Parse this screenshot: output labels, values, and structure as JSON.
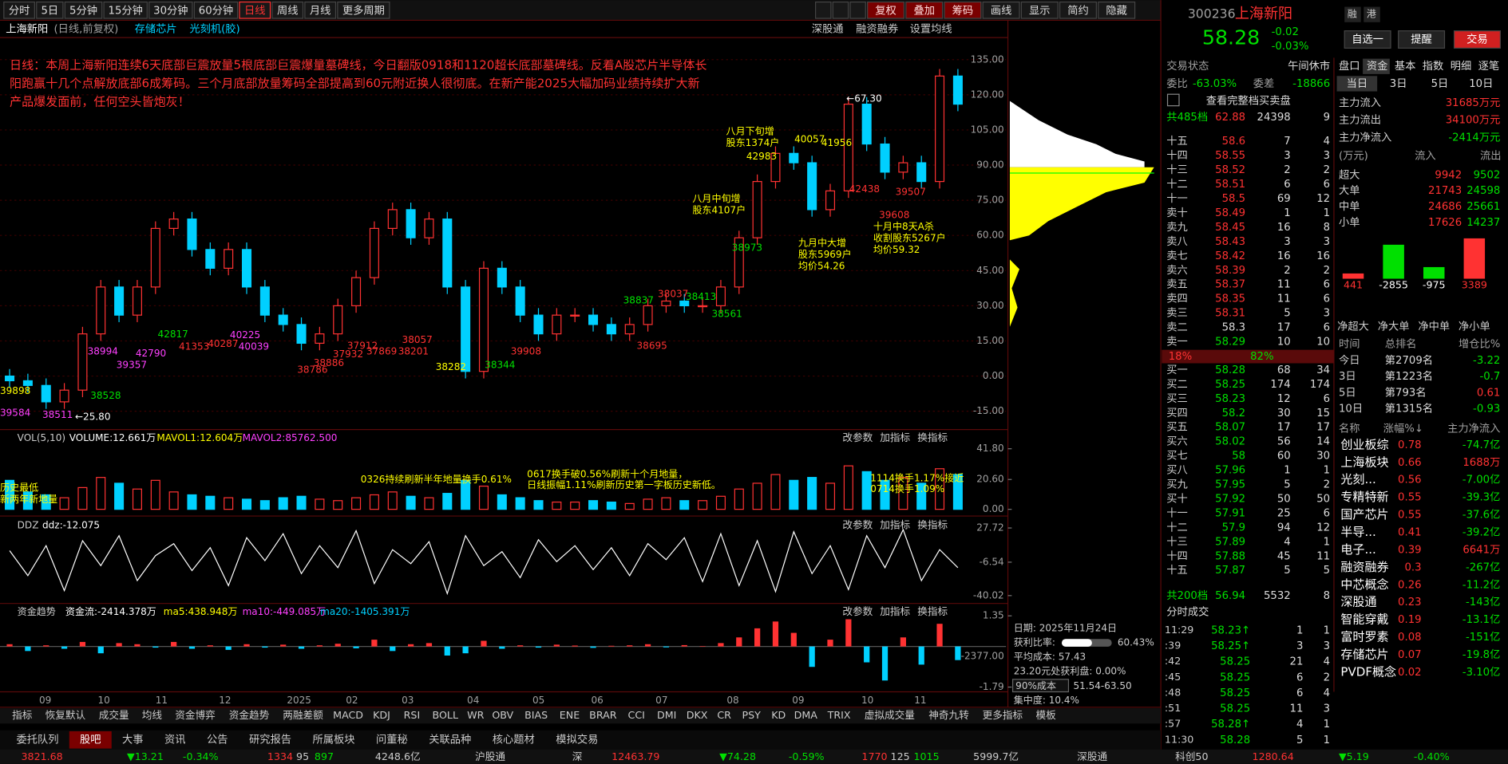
{
  "toolbar": {
    "periods": [
      "分时",
      "5日",
      "5分钟",
      "15分钟",
      "30分钟",
      "60分钟",
      "日线",
      "周线",
      "月线",
      "更多周期"
    ],
    "active_period": 6,
    "tools": [
      "复权",
      "叠加",
      "筹码",
      "画线",
      "显示",
      "简约",
      "隐藏"
    ]
  },
  "stock": {
    "code": "300236",
    "name": "上海新阳",
    "price": 58.28,
    "change": -0.02,
    "change_pct": "-0.03%",
    "tags": [
      "融",
      "港"
    ],
    "buttons": [
      "自选一",
      "提醒",
      "交易"
    ]
  },
  "chart": {
    "title": "上海新阳",
    "mode": "(日线,前复权)",
    "tags": [
      "存储芯片",
      "光刻机(胶)"
    ],
    "links": [
      "深股通",
      "融资融券",
      "设置均线"
    ],
    "annotation": [
      "日线：本周上海新阳连续6天底部巨震放量5根底部巨震爆量墓碑线，今日翻版0918和1120超长底部墓碑线。反着A股芯片半导体长",
      "阳跑赢十几个点解放底部6成筹码。三个月底部放量筹码全部提高到60元附近换人很彻底。在新产能2025大幅加码业绩持续扩大新",
      "产品爆发面前，任何空头皆炮灰！"
    ],
    "notes": [
      "←67.30",
      "←25.80",
      "八月下旬增",
      "股东1374户",
      "八月中旬增",
      "股东4107户",
      "九月中大增",
      "股东5969户",
      "均价54.26",
      "十月中8天A杀",
      "收割股东5267户",
      "均价59.32"
    ],
    "chip_counts": [
      "38837",
      "38037",
      "38413",
      "38561",
      "38695",
      "38282",
      "38344",
      "42817",
      "42790",
      "39357",
      "38994",
      "38528",
      "39584",
      "39898",
      "38511",
      "41353",
      "40287",
      "40225",
      "40039",
      "38786",
      "38886",
      "37932",
      "37912",
      "37869",
      "38201",
      "38057",
      "39908",
      "42983",
      "40057",
      "41956",
      "42438",
      "39507",
      "39608",
      "38973"
    ],
    "ylim": [
      -22,
      144
    ],
    "yticks": [
      {
        "value": 135,
        "label": "135.00"
      },
      {
        "value": 120,
        "label": "120.00"
      },
      {
        "value": 105,
        "label": "105.00"
      },
      {
        "value": 90,
        "label": "90.00"
      },
      {
        "value": 75,
        "label": "75.00"
      },
      {
        "value": 60,
        "label": "60.00"
      },
      {
        "value": 45,
        "label": "45.00"
      },
      {
        "value": 30,
        "label": "30.00"
      },
      {
        "value": 15,
        "label": "15.00"
      },
      {
        "value": 0,
        "label": "0.00"
      },
      {
        "value": -15,
        "label": "-15.00"
      }
    ],
    "candles": [
      [
        0,
        3,
        -5,
        -2
      ],
      [
        -2,
        1,
        -7,
        -4
      ],
      [
        -4,
        -1,
        -14,
        -11
      ],
      [
        -11,
        -3,
        -14,
        -6
      ],
      [
        -6,
        21,
        -9,
        18
      ],
      [
        18,
        41,
        15,
        38
      ],
      [
        38,
        41,
        23,
        26
      ],
      [
        26,
        41,
        23,
        38
      ],
      [
        38,
        66,
        35,
        63
      ],
      [
        63,
        70,
        60,
        67
      ],
      [
        67,
        70,
        51,
        54
      ],
      [
        54,
        57,
        43,
        46
      ],
      [
        46,
        57,
        43,
        54
      ],
      [
        54,
        57,
        35,
        38
      ],
      [
        38,
        41,
        23,
        26
      ],
      [
        26,
        29,
        19,
        22
      ],
      [
        22,
        25,
        11,
        14
      ],
      [
        14,
        21,
        11,
        18
      ],
      [
        18,
        33,
        15,
        30
      ],
      [
        30,
        45,
        27,
        42
      ],
      [
        42,
        66,
        39,
        63
      ],
      [
        63,
        74,
        60,
        71
      ],
      [
        71,
        74,
        56,
        59
      ],
      [
        59,
        70,
        56,
        67
      ],
      [
        67,
        70,
        35,
        38
      ],
      [
        38,
        41,
        -1,
        2
      ],
      [
        2,
        49,
        -1,
        46
      ],
      [
        46,
        49,
        35,
        38
      ],
      [
        38,
        41,
        23,
        26
      ],
      [
        26,
        29,
        15,
        18
      ],
      [
        18,
        29,
        15,
        26
      ],
      [
        26,
        29,
        23,
        26
      ],
      [
        26,
        29,
        19,
        22
      ],
      [
        22,
        25,
        15,
        18
      ],
      [
        18,
        25,
        15,
        22
      ],
      [
        22,
        33,
        19,
        30
      ],
      [
        30,
        35,
        27,
        32
      ],
      [
        32,
        35,
        27,
        30
      ],
      [
        30,
        33,
        27,
        30
      ],
      [
        30,
        41,
        27,
        38
      ],
      [
        38,
        62,
        35,
        59
      ],
      [
        59,
        86,
        56,
        83
      ],
      [
        83,
        98,
        80,
        95
      ],
      [
        95,
        98,
        88,
        91
      ],
      [
        91,
        94,
        68,
        71
      ],
      [
        71,
        82,
        68,
        79
      ],
      [
        79,
        119,
        76,
        116
      ],
      [
        116,
        119,
        96,
        99
      ],
      [
        99,
        102,
        84,
        87
      ],
      [
        87,
        94,
        84,
        91
      ],
      [
        91,
        94,
        80,
        83
      ],
      [
        83,
        131,
        80,
        128
      ],
      [
        128,
        131,
        113,
        116
      ]
    ],
    "x_labels": [
      "09",
      "10",
      "11",
      "12",
      "2025",
      "02",
      "03",
      "04",
      "05",
      "06",
      "07",
      "08",
      "09",
      "10",
      "11"
    ]
  },
  "panel_buttons": [
    "改参数",
    "加指标",
    "换指标"
  ],
  "volume": {
    "title": "VOL(5,10)",
    "readouts": [
      "VOLUME:12.661万",
      "MAVOL1:12.604万",
      "MAVOL2:85762.500"
    ],
    "ylim": [
      -3.3,
      45.1
    ],
    "yticks": [
      {
        "value": 41.8,
        "label": "41.80"
      },
      {
        "value": 20.6,
        "label": "20.60"
      },
      {
        "value": 0,
        "label": "0.00"
      }
    ],
    "values": [
      20,
      12,
      10,
      8,
      15,
      22,
      18,
      14,
      20,
      12,
      10,
      9,
      8,
      7,
      6,
      8,
      9,
      7,
      6,
      8,
      10,
      12,
      9,
      8,
      11,
      20,
      16,
      10,
      8,
      6,
      5,
      5,
      6,
      5,
      4,
      7,
      8,
      6,
      6,
      9,
      14,
      18,
      24,
      20,
      22,
      18,
      30,
      26,
      20,
      22,
      18,
      28,
      24
    ],
    "notes": [
      "历史最低",
      "新两年新地量",
      "0326持续刷新半年地量换手0.61%",
      "0617换手破0.56%刷新十个月地量，",
      "日线振幅1.11%刷新历史第一字板历史新低。",
      "1114换手1.17%接近",
      "0714换手1.09%"
    ]
  },
  "ddz": {
    "title": "DDZ",
    "readout": "ddz:-12.075",
    "ylim": [
      -45,
      32
    ],
    "yticks": [
      27.72,
      -6.54,
      -40.02
    ],
    "values": [
      5,
      -20,
      10,
      -35,
      15,
      -10,
      20,
      -25,
      0,
      12,
      -15,
      8,
      -30,
      18,
      -5,
      22,
      -18,
      10,
      -12,
      25,
      -28,
      6,
      -8,
      14,
      -38,
      20,
      -10,
      4,
      -22,
      16,
      -6,
      10,
      -14,
      8,
      -20,
      12,
      -4,
      18,
      -26,
      22,
      -30,
      15,
      -36,
      24,
      -18,
      10,
      -34,
      20,
      -12,
      26,
      -25,
      6,
      -12
    ]
  },
  "flow": {
    "title": "资金趋势",
    "readouts": [
      "资金流:-2414.378万",
      "ma5:438.948万",
      "ma10:-449.085万",
      "ma20:-1405.391万"
    ],
    "ylim": [
      -2.0,
      1.6
    ],
    "yticks": [
      1.35,
      -1.79
    ],
    "current": "-2377.00",
    "values": [
      0.1,
      -0.2,
      0.05,
      -0.1,
      0.2,
      -0.3,
      0.15,
      0.1,
      -0.05,
      0.2,
      -0.1,
      0.05,
      -0.15,
      0.1,
      -0.05,
      0.08,
      -0.1,
      0.05,
      0.12,
      -0.08,
      0.3,
      -0.2,
      0.1,
      0.15,
      -0.4,
      -0.3,
      0.25,
      -0.1,
      0.05,
      -0.05,
      0.08,
      0.04,
      -0.06,
      0.03,
      0.05,
      0.1,
      -0.04,
      0.06,
      0.02,
      0.15,
      0.4,
      0.8,
      1.1,
      0.6,
      -0.9,
      0.3,
      1.2,
      -0.7,
      -1.5,
      0.4,
      -0.8,
      1.0,
      -0.6
    ]
  },
  "chips": {
    "date": "日期: 2025年11月24日",
    "profit_label": "获利比率:",
    "profit": {
      "value": 60.43,
      "label": "60.43%"
    },
    "avg": "平均成本: 57.43",
    "profit_at": "23.20元处获利盘: 0.00%",
    "cost_select": "90%成本",
    "cost_range": "51.54-63.50",
    "concentration": "集中度: 10.4%"
  },
  "orderbook": {
    "status_label": "交易状态",
    "status": "午间休市",
    "ratio_label": "委比",
    "ratio": "-63.03%",
    "diff_label": "委差",
    "diff": -18866,
    "full": "查看完整档买卖盘",
    "sell_total": [
      "共485档",
      62.88,
      24398,
      9
    ],
    "sells": [
      [
        "十五",
        58.6,
        7,
        4
      ],
      [
        "十四",
        58.55,
        3,
        3
      ],
      [
        "十三",
        58.52,
        2,
        2
      ],
      [
        "十二",
        58.51,
        6,
        6
      ],
      [
        "十一",
        58.5,
        69,
        12
      ],
      [
        "卖十",
        58.49,
        1,
        1
      ],
      [
        "卖九",
        58.45,
        16,
        8
      ],
      [
        "卖八",
        58.43,
        3,
        3
      ],
      [
        "卖七",
        58.42,
        16,
        16
      ],
      [
        "卖六",
        58.39,
        2,
        2
      ],
      [
        "卖五",
        58.37,
        11,
        6
      ],
      [
        "卖四",
        58.35,
        11,
        6
      ],
      [
        "卖三",
        58.31,
        5,
        3
      ],
      [
        "卖二",
        58.3,
        17,
        6
      ],
      [
        "卖一",
        58.29,
        10,
        10
      ]
    ],
    "ratio_bar": [
      "18%",
      "82%"
    ],
    "buys": [
      [
        "买一",
        58.28,
        68,
        34
      ],
      [
        "买二",
        58.25,
        174,
        174
      ],
      [
        "买三",
        58.23,
        12,
        6
      ],
      [
        "买四",
        58.2,
        30,
        15
      ],
      [
        "买五",
        58.07,
        17,
        17
      ],
      [
        "买六",
        58.02,
        56,
        14
      ],
      [
        "买七",
        58,
        60,
        30
      ],
      [
        "买八",
        57.96,
        1,
        1
      ],
      [
        "买九",
        57.95,
        5,
        2
      ],
      [
        "买十",
        57.92,
        50,
        50
      ],
      [
        "十一",
        57.91,
        25,
        6
      ],
      [
        "十二",
        57.9,
        94,
        12
      ],
      [
        "十三",
        57.89,
        4,
        1
      ],
      [
        "十四",
        57.88,
        45,
        11
      ],
      [
        "十五",
        57.87,
        5,
        5
      ]
    ],
    "buy_total": [
      "共200档",
      56.94,
      5532,
      8
    ]
  },
  "ticks": {
    "title": "分时成交",
    "rows": [
      [
        "11:29",
        "58.23↑",
        1,
        1
      ],
      [
        ":39",
        "58.25↑",
        3,
        3
      ],
      [
        ":42",
        "58.25",
        21,
        4
      ],
      [
        ":45",
        "58.25",
        6,
        2
      ],
      [
        ":48",
        "58.25",
        6,
        4
      ],
      [
        ":51",
        "58.25",
        11,
        3
      ],
      [
        ":57",
        "58.28↑",
        4,
        1
      ],
      [
        "11:30",
        "58.28",
        5,
        1
      ]
    ]
  },
  "fund": {
    "tabs": [
      "盘口",
      "资金",
      "基本",
      "指数",
      "明细",
      "逐笔"
    ],
    "periods": [
      "当日",
      "3日",
      "5日",
      "10日"
    ],
    "summary": [
      [
        "主力流入",
        "31685万元"
      ],
      [
        "主力流出",
        "34100万元"
      ],
      [
        "主力净流入",
        "-2414万元"
      ]
    ],
    "table_head": [
      "(万元)",
      "流入",
      "流出"
    ],
    "table": [
      [
        "超大",
        9942,
        9502
      ],
      [
        "大单",
        21743,
        24598
      ],
      [
        "中单",
        24686,
        25661
      ],
      [
        "小单",
        17626,
        14237
      ]
    ],
    "net": {
      "labels": [
        "净超大",
        "净大单",
        "净中单",
        "净小单"
      ],
      "values": [
        441,
        -2855,
        -975,
        3389
      ]
    },
    "rank_head": [
      "时间",
      "总排名",
      "增仓比%"
    ],
    "ranks": [
      [
        "今日",
        "第2709名",
        -3.22
      ],
      [
        "3日",
        "第1223名",
        -0.7
      ],
      [
        "5日",
        "第793名",
        0.61
      ],
      [
        "10日",
        "第1315名",
        -0.93
      ]
    ],
    "sector_head": [
      "名称",
      "涨幅%↓",
      "主力净流入"
    ],
    "sectors": [
      [
        "创业板综",
        0.78,
        "-74.7亿"
      ],
      [
        "上海板块",
        0.66,
        "1688万"
      ],
      [
        "光刻...",
        0.56,
        "-7.00亿"
      ],
      [
        "专精特新",
        0.55,
        "-39.3亿"
      ],
      [
        "国产芯片",
        0.55,
        "-37.6亿"
      ],
      [
        "半导...",
        0.41,
        "-39.2亿"
      ],
      [
        "电子...",
        0.39,
        "6641万"
      ],
      [
        "融资融券",
        0.3,
        "-267亿"
      ],
      [
        "中芯概念",
        0.26,
        "-11.2亿"
      ],
      [
        "深股通",
        0.23,
        "-143亿"
      ],
      [
        "智能穿戴",
        0.19,
        "-13.1亿"
      ],
      [
        "富时罗素",
        0.08,
        "-151亿"
      ],
      [
        "存储芯片",
        0.07,
        "-19.8亿"
      ],
      [
        "PVDF概念",
        0.02,
        "-3.10亿"
      ]
    ]
  },
  "bottom_tabs": [
    "指标",
    "恢复默认",
    "成交量",
    "均线",
    "资金博弈",
    "资金趋势",
    "两融差额",
    "MACD",
    "KDJ",
    "RSI",
    "BOLL",
    "WR",
    "OBV",
    "BIAS",
    "ENE",
    "BRAR",
    "CCI",
    "DMI",
    "DKX",
    "CR",
    "PSY",
    "KD",
    "DMA",
    "TRIX",
    "虚拟成交量",
    "神奇九转",
    "更多指标",
    "模板"
  ],
  "info_tabs": [
    "委托队列",
    "股吧",
    "大事",
    "资讯",
    "公告",
    "研究报告",
    "所属板块",
    "问董秘",
    "关联品种",
    "核心题材",
    "模拟交易"
  ],
  "active_info": 1,
  "status_bar": {
    "sh": [
      3821.68,
      "▼13.21",
      "-0.34%",
      1334,
      95,
      897,
      "4248.6亿"
    ],
    "hgt": "沪股通",
    "sz_label": "深",
    "sz": [
      12463.79,
      "▼74.28",
      "-0.59%",
      1770,
      125,
      1015,
      "5999.7亿"
    ],
    "sgt": "深股通",
    "kc_label": "科创50",
    "kc": [
      1280.64,
      "▼5.19",
      "-0.40%"
    ]
  }
}
